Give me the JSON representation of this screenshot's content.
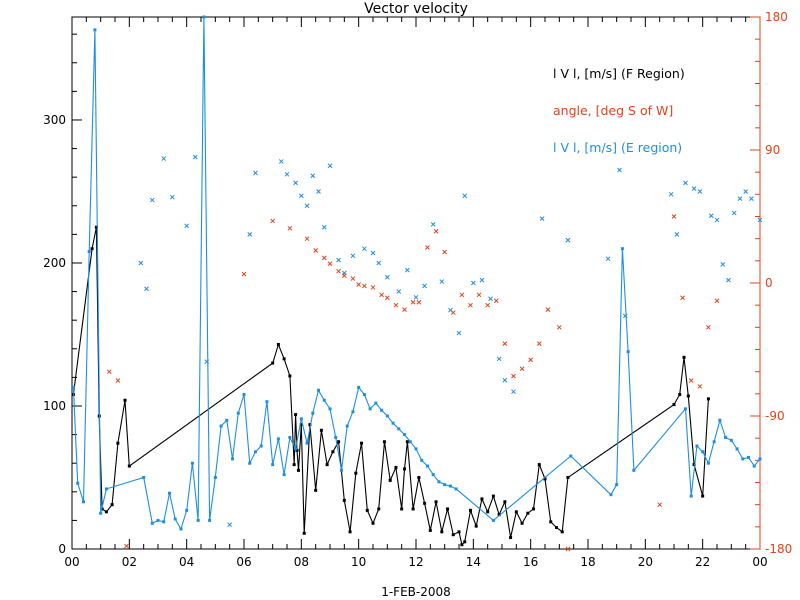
{
  "chart_data": {
    "type": "line",
    "title": "Vector velocity",
    "xlabel": "1-FEB-2008",
    "x_unit": "hour",
    "xlim": [
      0,
      24
    ],
    "x_tick_labels": [
      "00",
      "02",
      "04",
      "06",
      "08",
      "10",
      "12",
      "14",
      "16",
      "18",
      "20",
      "22",
      "00"
    ],
    "ylim_left": [
      0,
      372
    ],
    "y_left_ticks": [
      0,
      100,
      200,
      300
    ],
    "ylim_right": [
      -180,
      180
    ],
    "y_right_ticks": [
      -180,
      -90,
      0,
      90,
      180
    ],
    "y_right_tick_labels": [
      "-180",
      "-90",
      "0",
      "90",
      "180"
    ],
    "grid": false,
    "legend_position": "top-right",
    "colors": {
      "f_region": "#000000",
      "angle": "#e0441c",
      "e_region": "#1e8fe0",
      "axis_right": "#e0441c",
      "axis_left": "#000000"
    },
    "legend": [
      {
        "key": "f_region",
        "label": "l V l, [m/s] (F Region)"
      },
      {
        "key": "angle",
        "label": "angle, [deg S of W]"
      },
      {
        "key": "e_region",
        "label": "l V l, [m/s] (E region)"
      }
    ],
    "series": [
      {
        "key": "f_region",
        "axis": "left",
        "style": "line-points",
        "x": [
          0.05,
          0.7,
          0.85,
          0.95,
          1.05,
          1.2,
          1.4,
          1.6,
          1.85,
          2.0,
          7.0,
          7.2,
          7.4,
          7.6,
          7.75,
          7.8,
          7.85,
          7.9,
          8.0,
          8.1,
          8.3,
          8.5,
          8.7,
          8.9,
          9.1,
          9.3,
          9.5,
          9.7,
          9.9,
          10.1,
          10.3,
          10.5,
          10.7,
          10.9,
          11.1,
          11.3,
          11.5,
          11.6,
          11.7,
          11.9,
          12.1,
          12.3,
          12.5,
          12.7,
          12.9,
          13.1,
          13.3,
          13.5,
          13.6,
          13.7,
          13.9,
          14.1,
          14.3,
          14.5,
          14.7,
          14.9,
          15.1,
          15.3,
          15.5,
          15.7,
          15.9,
          16.1,
          16.3,
          16.5,
          16.7,
          16.9,
          17.1,
          17.3,
          21.0,
          21.2,
          21.35,
          21.5,
          21.7,
          22.0,
          22.2
        ],
        "y": [
          108,
          210,
          225,
          93,
          28,
          26,
          31,
          74,
          104,
          58,
          130,
          143,
          133,
          121,
          59,
          94,
          69,
          55,
          87,
          11,
          87,
          41,
          83,
          59,
          68,
          75,
          34,
          12,
          53,
          74,
          27,
          18,
          28,
          75,
          48,
          57,
          28,
          56,
          75,
          28,
          50,
          32,
          13,
          33,
          12,
          28,
          10,
          12,
          3,
          5,
          27,
          16,
          35,
          26,
          37,
          24,
          33,
          8,
          26,
          18,
          25,
          28,
          59,
          49,
          19,
          15,
          12,
          50,
          101,
          108,
          134,
          107,
          59,
          37,
          105
        ]
      },
      {
        "key": "e_region",
        "axis": "left",
        "style": "line-points",
        "x": [
          0.05,
          0.2,
          0.4,
          0.6,
          0.8,
          1.0,
          1.2,
          2.5,
          2.8,
          3.0,
          3.2,
          3.4,
          3.6,
          3.8,
          4.0,
          4.2,
          4.4,
          4.6,
          4.8,
          5.0,
          5.2,
          5.4,
          5.6,
          5.8,
          6.0,
          6.2,
          6.4,
          6.6,
          6.8,
          7.0,
          7.2,
          7.4,
          7.6,
          7.8,
          8.0,
          8.2,
          8.4,
          8.6,
          8.8,
          9.0,
          9.2,
          9.4,
          9.6,
          9.8,
          10.0,
          10.2,
          10.4,
          10.6,
          10.8,
          11.0,
          11.2,
          11.4,
          11.6,
          11.8,
          12.0,
          12.2,
          12.4,
          12.6,
          12.8,
          13.0,
          13.2,
          13.4,
          14.7,
          17.4,
          18.8,
          19.0,
          19.2,
          19.4,
          19.6,
          21.4,
          21.6,
          21.8,
          22.0,
          22.2,
          22.4,
          22.6,
          22.8,
          23.0,
          23.2,
          23.4,
          23.6,
          23.8,
          24.0
        ],
        "y": [
          113,
          46,
          33,
          208,
          363,
          25,
          42,
          50,
          18,
          20,
          19,
          39,
          21,
          14,
          27,
          60,
          20,
          372,
          20,
          50,
          86,
          90,
          63,
          95,
          108,
          60,
          68,
          72,
          103,
          59,
          77,
          52,
          78,
          70,
          91,
          74,
          95,
          111,
          104,
          98,
          78,
          55,
          86,
          96,
          113,
          108,
          98,
          102,
          97,
          93,
          88,
          84,
          80,
          75,
          70,
          62,
          58,
          52,
          47,
          45,
          44,
          42,
          20,
          65,
          38,
          45,
          210,
          138,
          55,
          98,
          37,
          72,
          68,
          60,
          75,
          90,
          78,
          76,
          70,
          63,
          64,
          58,
          63
        ]
      },
      {
        "key": "e_region",
        "axis": "left",
        "style": "marks",
        "x": [
          2.4,
          2.6,
          2.8,
          3.2,
          3.5,
          4.0,
          4.3,
          4.7,
          5.5,
          6.2,
          6.4,
          7.3,
          7.5,
          7.8,
          8.0,
          8.2,
          8.4,
          8.6,
          8.8,
          9.0,
          9.3,
          9.5,
          9.8,
          10.2,
          10.5,
          10.7,
          11.0,
          11.4,
          11.7,
          12.0,
          12.3,
          12.6,
          12.9,
          13.2,
          13.5,
          13.7,
          14.0,
          14.3,
          14.6,
          14.9,
          15.1,
          15.4,
          16.4,
          17.3,
          18.7,
          19.1,
          19.3,
          20.9,
          21.1,
          21.4,
          21.7,
          21.9,
          22.3,
          22.5,
          22.7,
          22.9,
          23.1,
          23.3,
          23.5,
          23.7,
          24.0
        ],
        "y": [
          200,
          182,
          244,
          273,
          246,
          226,
          274,
          131,
          17,
          220,
          263,
          271,
          262,
          256,
          247,
          240,
          261,
          250,
          225,
          268,
          202,
          193,
          205,
          210,
          207,
          200,
          190,
          180,
          195,
          176,
          184,
          227,
          187,
          167,
          151,
          247,
          186,
          188,
          175,
          133,
          118,
          110,
          231,
          216,
          203,
          265,
          163,
          248,
          220,
          256,
          252,
          250,
          233,
          230,
          199,
          188,
          235,
          245,
          250,
          245,
          230
        ]
      },
      {
        "key": "angle",
        "axis": "right",
        "style": "marks",
        "x": [
          1.3,
          1.6,
          1.9,
          6.0,
          7.0,
          7.6,
          8.2,
          8.5,
          8.8,
          9.0,
          9.3,
          9.5,
          9.8,
          10.0,
          10.2,
          10.5,
          10.8,
          11.0,
          11.3,
          11.6,
          11.9,
          12.1,
          12.4,
          12.7,
          13.0,
          13.3,
          13.6,
          13.9,
          14.2,
          14.5,
          14.8,
          15.1,
          15.4,
          15.7,
          16.0,
          16.3,
          16.6,
          17.0,
          17.3,
          20.5,
          21.0,
          21.3,
          21.6,
          21.9,
          22.2,
          22.5
        ],
        "y": [
          -60,
          -66,
          -178,
          6,
          42,
          37,
          30,
          22,
          17,
          13,
          8,
          5,
          3,
          -1,
          -2,
          -3,
          -8,
          -10,
          -15,
          -18,
          -13,
          -13,
          24,
          35,
          21,
          -20,
          -8,
          -15,
          -8,
          -15,
          -12,
          -41,
          -63,
          -58,
          -52,
          -41,
          -18,
          -30,
          -180,
          -150,
          45,
          -10,
          -66,
          -70,
          -30,
          -12
        ]
      }
    ]
  }
}
